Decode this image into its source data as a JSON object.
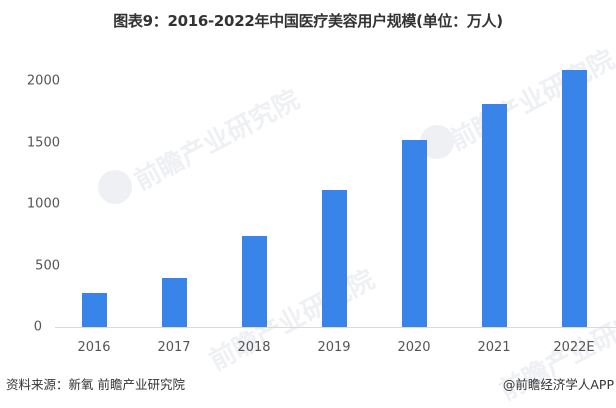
{
  "chart_data": {
    "type": "bar",
    "title": "图表9：2016-2022年中国医疗美容用户规模(单位：万人)",
    "categories": [
      "2016",
      "2017",
      "2018",
      "2019",
      "2020",
      "2021",
      "2022E"
    ],
    "series": [
      {
        "name": "医疗美容用户规模",
        "values": [
          276,
          400,
          740,
          1114,
          1520,
          1812,
          2090
        ],
        "color": "#3884e8"
      }
    ],
    "xlabel": "",
    "ylabel": "万人",
    "ylim": [
      0,
      2000
    ],
    "yticks": [
      "0",
      "500",
      "1000",
      "1500",
      "2000"
    ],
    "grid": false,
    "legend": "none"
  },
  "footer": {
    "source": "资料来源：新氧 前瞻产业研究院",
    "credit": "@前瞻经济学人APP"
  },
  "watermark": {
    "text": "前瞻产业研究院"
  }
}
